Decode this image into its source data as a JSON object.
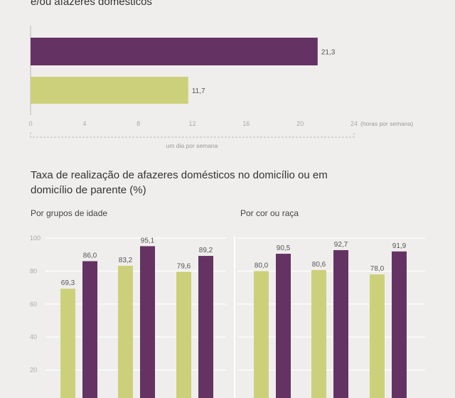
{
  "top_title": "e/ou afazeres domésticos",
  "section_title": "Taxa de realização de afazeres domésticos no domicílio ou em domicílio de parente (%)",
  "colors": {
    "green": "#cdd07b",
    "purple": "#643363",
    "grid": "#ffffff",
    "axis": "#bbbbbb"
  },
  "chart_data": [
    {
      "type": "bar",
      "orientation": "horizontal",
      "series": [
        {
          "values": [
            21.3
          ],
          "color": "#643363"
        },
        {
          "values": [
            11.7
          ],
          "color": "#cdd07b"
        }
      ],
      "value_labels": [
        "21,3",
        "11,7"
      ],
      "xlim": [
        0,
        24
      ],
      "x_ticks": [
        "0",
        "4",
        "8",
        "12",
        "16",
        "20",
        "24"
      ],
      "x_unit": "(horas por semana)",
      "annotation": "um dia por semana"
    },
    {
      "type": "bar",
      "title": "Por grupos de idade",
      "ylim": [
        0,
        100
      ],
      "y_ticks": [
        "100",
        "80",
        "60",
        "40",
        "20"
      ],
      "groups": [
        {
          "values": [
            69.3,
            86.0
          ],
          "labels": [
            "69,3",
            "86,0"
          ]
        },
        {
          "values": [
            83.2,
            95.1
          ],
          "labels": [
            "83,2",
            "95,1"
          ]
        },
        {
          "values": [
            79.6,
            89.2
          ],
          "labels": [
            "79,6",
            "89,2"
          ]
        }
      ],
      "series_colors": [
        "#cdd07b",
        "#643363"
      ]
    },
    {
      "type": "bar",
      "title": "Por cor ou raça",
      "ylim": [
        0,
        100
      ],
      "groups": [
        {
          "values": [
            80.0,
            90.5
          ],
          "labels": [
            "80,0",
            "90,5"
          ]
        },
        {
          "values": [
            80.6,
            92.7
          ],
          "labels": [
            "80,6",
            "92,7"
          ]
        },
        {
          "values": [
            78.0,
            91.9
          ],
          "labels": [
            "78,0",
            "91,9"
          ]
        }
      ],
      "series_colors": [
        "#cdd07b",
        "#643363"
      ]
    }
  ]
}
